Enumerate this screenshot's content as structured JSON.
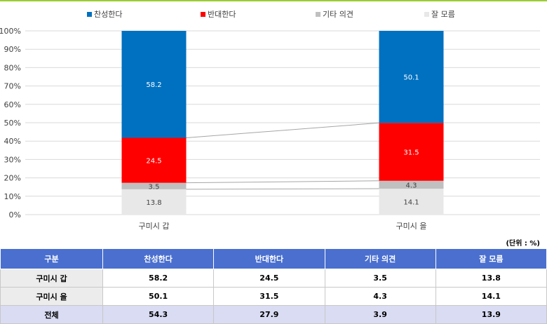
{
  "chart_data": {
    "type": "bar",
    "stacked": true,
    "normalized_percent": true,
    "categories": [
      "구미시 갑",
      "구미시 을"
    ],
    "series": [
      {
        "name": "잘 모름",
        "values": [
          13.8,
          14.1
        ],
        "color": "#e8e8e8"
      },
      {
        "name": "기타 의견",
        "values": [
          3.5,
          4.3
        ],
        "color": "#c0c0c0"
      },
      {
        "name": "반대한다",
        "values": [
          24.5,
          31.5
        ],
        "color": "#ff0000"
      },
      {
        "name": "찬성한다",
        "values": [
          58.2,
          50.1
        ],
        "color": "#0070c0"
      }
    ],
    "legend_order": [
      "찬성한다",
      "반대한다",
      "기타 의견",
      "잘 모름"
    ],
    "legend_position": "top",
    "yticks": [
      "0%",
      "10%",
      "20%",
      "30%",
      "40%",
      "50%",
      "60%",
      "70%",
      "80%",
      "90%",
      "100%"
    ],
    "ylim": [
      0,
      100
    ],
    "grid": true,
    "series_lines": true
  },
  "unit_label": "(단위 : %)",
  "table": {
    "headers": [
      "구분",
      "찬성한다",
      "반대한다",
      "기타 의견",
      "잘 모름"
    ],
    "rows": [
      {
        "label": "구미시 갑",
        "values": [
          "58.2",
          "24.5",
          "3.5",
          "13.8"
        ]
      },
      {
        "label": "구미시 을",
        "values": [
          "50.1",
          "31.5",
          "4.3",
          "14.1"
        ]
      },
      {
        "label": "전체",
        "values": [
          "54.3",
          "27.9",
          "3.9",
          "13.9"
        ]
      }
    ]
  }
}
